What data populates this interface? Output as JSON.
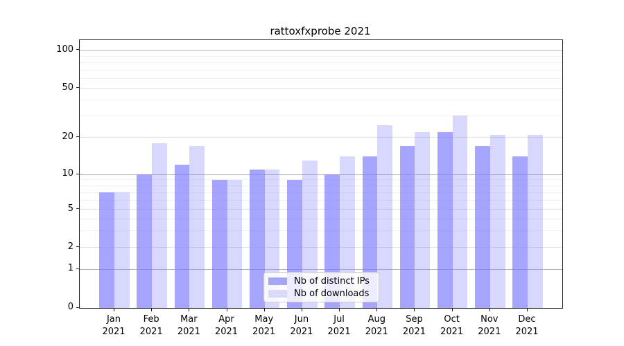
{
  "chart_data": {
    "type": "bar",
    "title": "rattoxfxprobe 2021",
    "categories": [
      "Jan",
      "Feb",
      "Mar",
      "Apr",
      "May",
      "Jun",
      "Jul",
      "Aug",
      "Sep",
      "Oct",
      "Nov",
      "Dec"
    ],
    "category_sub_label": "2021",
    "series": [
      {
        "name": "Nb of distinct IPs",
        "values": [
          7,
          10,
          12,
          9,
          11,
          9,
          10,
          14,
          17,
          22,
          17,
          14
        ],
        "color": "rgba(127,127,255,0.7)",
        "swatch_color": "#a6a6f7"
      },
      {
        "name": "Nb of downloads",
        "values": [
          7,
          18,
          17,
          9,
          11,
          13,
          14,
          25,
          22,
          30,
          21,
          21
        ],
        "color": "rgba(127,127,255,0.3)",
        "swatch_color": "#d9d9fa"
      }
    ],
    "xlabel": "",
    "ylabel": "",
    "yscale": "symlog",
    "ylim": [
      0,
      110
    ],
    "y_ticks": [
      0,
      1,
      2,
      5,
      10,
      20,
      50,
      100
    ],
    "y_minor_gridlines": [
      3,
      4,
      6,
      7,
      8,
      9,
      30,
      40,
      60,
      70,
      80,
      90
    ],
    "grid": true,
    "legend_position": "lower center",
    "legend_entries": [
      "Nb of distinct IPs",
      "Nb of downloads"
    ]
  }
}
